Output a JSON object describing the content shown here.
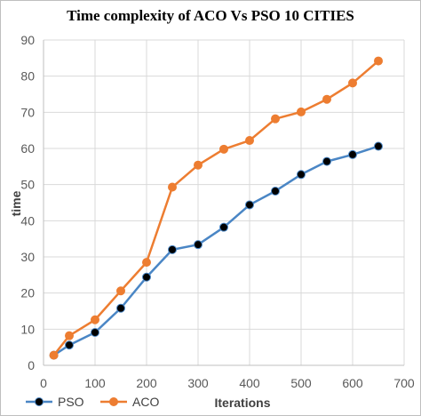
{
  "chart_data": {
    "type": "line",
    "title": "Time complexity of ACO Vs PSO 10 CITIES",
    "xlabel": "Iterations",
    "ylabel": "time",
    "xlim": [
      0,
      700
    ],
    "ylim": [
      0,
      90
    ],
    "x_ticks": [
      0,
      100,
      200,
      300,
      400,
      500,
      600,
      700
    ],
    "y_ticks": [
      0,
      10,
      20,
      30,
      40,
      50,
      60,
      70,
      80,
      90
    ],
    "grid": true,
    "legend_position": "bottom-left",
    "x": [
      20,
      50,
      100,
      150,
      200,
      250,
      300,
      350,
      400,
      450,
      500,
      550,
      600,
      650
    ],
    "series": [
      {
        "name": "PSO",
        "color": "#4a86c5",
        "marker_color": "#000000",
        "values": [
          2.8,
          5.6,
          9.1,
          15.8,
          24.4,
          32.0,
          33.4,
          38.2,
          44.4,
          48.2,
          52.8,
          56.4,
          58.3,
          60.6
        ]
      },
      {
        "name": "ACO",
        "color": "#ed7d31",
        "marker_color": "#ed7d31",
        "values": [
          2.8,
          8.2,
          12.6,
          20.6,
          28.5,
          49.3,
          55.4,
          59.8,
          62.2,
          68.2,
          70.1,
          73.6,
          78.1,
          84.2
        ]
      }
    ]
  }
}
